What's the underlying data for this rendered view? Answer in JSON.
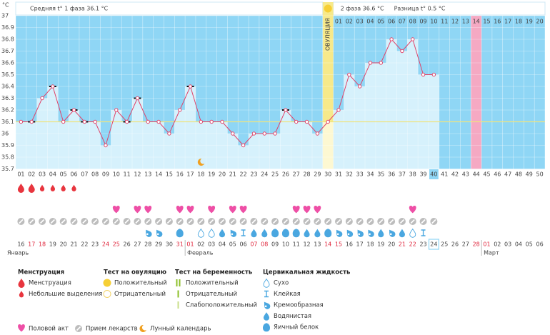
{
  "chart_data": {
    "type": "line",
    "y_unit": "°C",
    "header": {
      "phase1": "Средняя t° 1 фаза 36.1 °C",
      "phase2": "2 фаза 36.6 °C",
      "difference": "Разница t° 0.5 °C"
    },
    "ovulation_label": "ОВУЛЯЦИЯ",
    "ovulation_day": 30,
    "categories": [
      "01",
      "02",
      "03",
      "04",
      "05",
      "06",
      "07",
      "08",
      "09",
      "10",
      "11",
      "12",
      "13",
      "14",
      "15",
      "16",
      "17",
      "18",
      "19",
      "20",
      "21",
      "22",
      "23",
      "24",
      "25",
      "26",
      "27",
      "28",
      "29",
      "30",
      "31",
      "32",
      "33",
      "34",
      "35",
      "36",
      "37",
      "38",
      "39",
      "40",
      "41",
      "42",
      "43",
      "44",
      "45",
      "46",
      "47",
      "48",
      "49",
      "50"
    ],
    "values": [
      36.1,
      36.1,
      36.3,
      36.4,
      36.1,
      36.2,
      36.1,
      36.1,
      35.9,
      36.2,
      36.1,
      36.3,
      36.1,
      36.1,
      36.0,
      36.2,
      36.4,
      36.1,
      36.1,
      36.1,
      36.0,
      35.9,
      36.0,
      36.0,
      36.0,
      36.2,
      36.1,
      36.1,
      36.0,
      36.1,
      36.2,
      36.5,
      36.4,
      36.6,
      36.6,
      36.8,
      36.7,
      36.8,
      36.5,
      36.5,
      null,
      null,
      null,
      null,
      null,
      null,
      null,
      null,
      null,
      null
    ],
    "color": "#e0446a",
    "ylim": [
      35.7,
      37
    ],
    "yticks": [
      35.7,
      35.8,
      35.9,
      36,
      36.1,
      36.2,
      36.3,
      36.4,
      36.5,
      36.6,
      36.7,
      36.8,
      36.9,
      37
    ],
    "grid": true,
    "coverline": 36.1,
    "marked_days": [
      2,
      4,
      6,
      7,
      11,
      12,
      17,
      26
    ],
    "moon_day": 18,
    "today_day": 40,
    "highlight_day": 44,
    "phase2_start_day": 31,
    "phase2_days": [
      "01",
      "02",
      "03",
      "04",
      "05",
      "06",
      "07",
      "08",
      "09",
      "10",
      "11",
      "12",
      "13",
      "14",
      "15",
      "16",
      "17",
      "18",
      "19",
      "20"
    ]
  },
  "symptoms": {
    "menstruation": [
      "heavy",
      "heavy",
      "light",
      "light",
      "light",
      "light"
    ],
    "intercourse_days": [
      10,
      12,
      13,
      16,
      17,
      19,
      21,
      22,
      27,
      28,
      29,
      38
    ],
    "medication_days": [
      1,
      2,
      3,
      4,
      5,
      6,
      7,
      8,
      9,
      10,
      11,
      12,
      13,
      14,
      15,
      16,
      17,
      18,
      19,
      20,
      21,
      22,
      23,
      24,
      25,
      26,
      27,
      28,
      29,
      30,
      31,
      32,
      33,
      34,
      35,
      36,
      37,
      38,
      39,
      40
    ],
    "cervical": [
      {
        "day": 13,
        "type": "creamy"
      },
      {
        "day": 14,
        "type": "creamy"
      },
      {
        "day": 16,
        "type": "eggwhite"
      },
      {
        "day": 18,
        "type": "dry"
      },
      {
        "day": 19,
        "type": "dry"
      },
      {
        "day": 20,
        "type": "watery"
      },
      {
        "day": 21,
        "type": "creamy"
      },
      {
        "day": 22,
        "type": "sticky"
      },
      {
        "day": 23,
        "type": "watery"
      },
      {
        "day": 24,
        "type": "watery"
      },
      {
        "day": 25,
        "type": "eggwhite"
      },
      {
        "day": 26,
        "type": "eggwhite"
      },
      {
        "day": 27,
        "type": "eggwhite"
      },
      {
        "day": 28,
        "type": "watery"
      },
      {
        "day": 29,
        "type": "watery"
      },
      {
        "day": 30,
        "type": "eggwhite"
      },
      {
        "day": 31,
        "type": "creamy"
      },
      {
        "day": 32,
        "type": "creamy"
      },
      {
        "day": 33,
        "type": "creamy"
      },
      {
        "day": 34,
        "type": "creamy"
      },
      {
        "day": 35,
        "type": "watery"
      },
      {
        "day": 36,
        "type": "creamy"
      },
      {
        "day": 37,
        "type": "watery"
      },
      {
        "day": 38,
        "type": "dry"
      },
      {
        "day": 39,
        "type": "sticky"
      }
    ]
  },
  "calendar": {
    "dates": [
      "16",
      "17",
      "18",
      "19",
      "20",
      "21",
      "22",
      "23",
      "24",
      "25",
      "26",
      "27",
      "28",
      "29",
      "30",
      "31",
      "01",
      "02",
      "03",
      "04",
      "05",
      "06",
      "07",
      "08",
      "09",
      "10",
      "11",
      "12",
      "13",
      "14",
      "15",
      "16",
      "17",
      "18",
      "19",
      "20",
      "21",
      "22",
      "23",
      "24",
      "25",
      "26",
      "27",
      "28",
      "01",
      "02",
      "03",
      "04",
      "05",
      "06"
    ],
    "weekend_days": [
      2,
      3,
      9,
      10,
      16,
      17,
      23,
      24,
      30,
      31,
      37,
      38,
      44,
      45
    ],
    "months": [
      {
        "label": "Январь",
        "day": 1
      },
      {
        "label": "Февраль",
        "day": 17
      },
      {
        "label": "Март",
        "day": 45
      }
    ]
  },
  "legend": {
    "menstruation": {
      "title": "Менструация",
      "items": [
        "Менструация",
        "Небольшие выделения"
      ]
    },
    "ovulation_test": {
      "title": "Тест на овуляцию",
      "items": [
        "Положительный",
        "Отрицательный"
      ]
    },
    "pregnancy_test": {
      "title": "Тест на беременность",
      "items": [
        "Положительный",
        "Отрицательный",
        "Слабоположительный"
      ]
    },
    "cervical": {
      "title": "Цервикальная жидкость",
      "items": [
        "Сухо",
        "Клейкая",
        "Кремообразная",
        "Водянистая",
        "Яичный белок"
      ]
    },
    "other": [
      "Половой акт",
      "Прием лекарств",
      "Лунный календарь"
    ]
  }
}
